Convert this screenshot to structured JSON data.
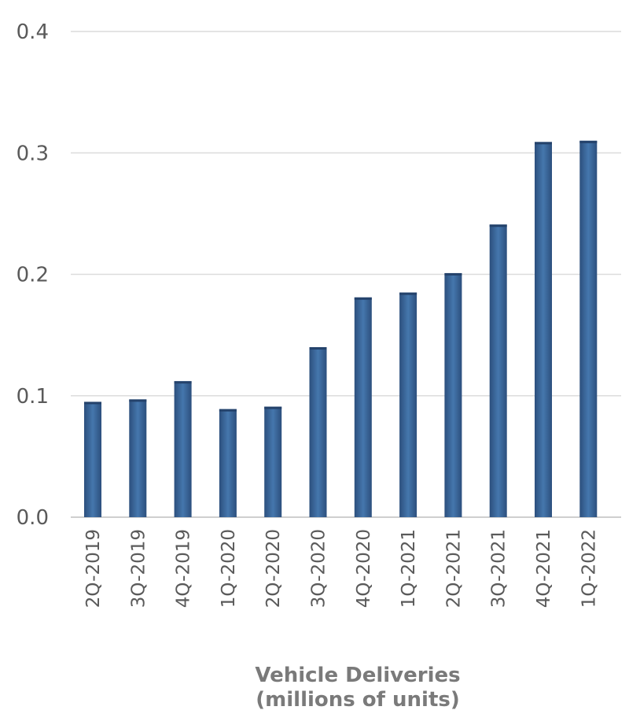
{
  "chart_data": {
    "type": "bar",
    "title_lines": [
      "Vehicle Deliveries",
      "(millions of units)"
    ],
    "xlabel": "",
    "ylabel": "",
    "categories": [
      "2Q-2019",
      "3Q-2019",
      "4Q-2019",
      "1Q-2020",
      "2Q-2020",
      "3Q-2020",
      "4Q-2020",
      "1Q-2021",
      "2Q-2021",
      "3Q-2021",
      "4Q-2021",
      "1Q-2022"
    ],
    "series": [
      {
        "values": [
          0.095,
          0.097,
          0.112,
          0.089,
          0.091,
          0.14,
          0.181,
          0.185,
          0.201,
          0.241,
          0.309,
          0.31
        ]
      }
    ],
    "ylim": [
      0,
      0.4
    ],
    "yticks": [
      0.0,
      0.1,
      0.2,
      0.3,
      0.4
    ],
    "ytick_labels": [
      "0.0",
      "0.1",
      "0.2",
      "0.3",
      "0.4"
    ],
    "grid": true,
    "legend": "none",
    "colors": {
      "bar_dark": "#2c4f7d",
      "bar_light": "#4577ad",
      "grid": "#dcdcdc",
      "text": "#5a5a5a",
      "title": "#7a7a7a"
    }
  }
}
